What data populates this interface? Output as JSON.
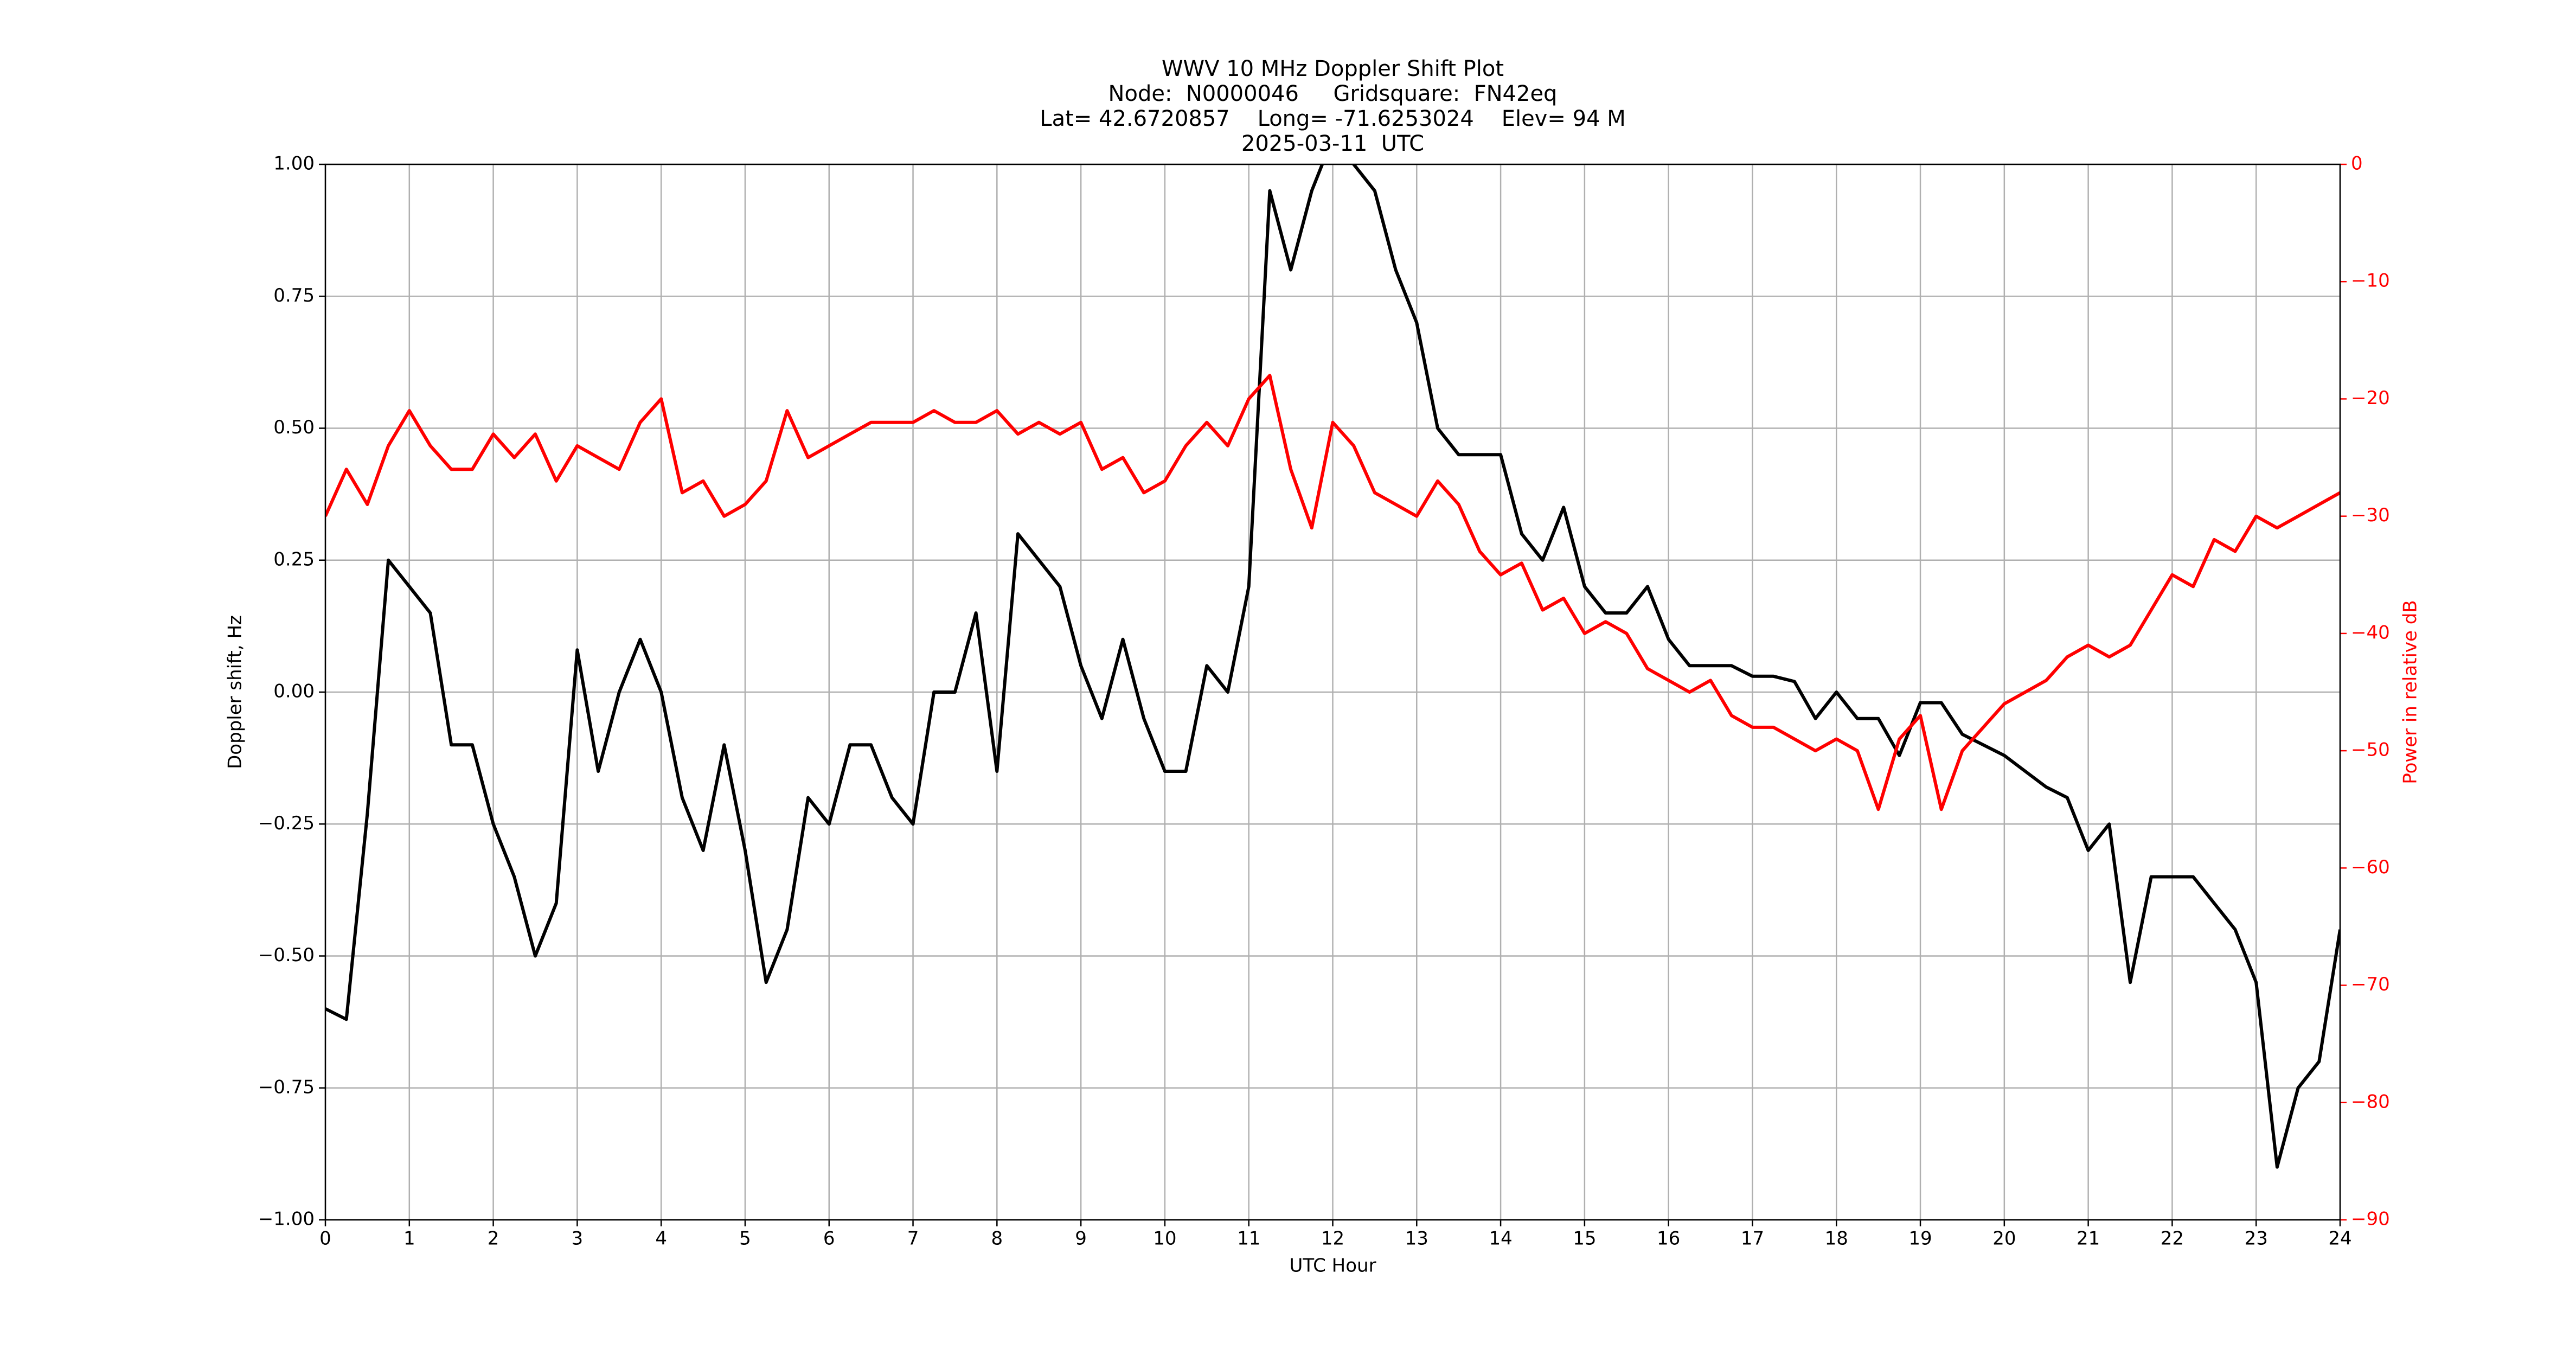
{
  "chart_data": {
    "type": "line",
    "title": [
      "WWV 10 MHz Doppler Shift Plot",
      "Node:  N0000046     Gridsquare:  FN42eq",
      "Lat= 42.6720857    Long= -71.6253024    Elev= 94 M",
      "2025-03-11  UTC"
    ],
    "xlabel": "UTC Hour",
    "ylabel": "Doppler shift, Hz",
    "y2label": "Power in relative dB",
    "x": [
      0,
      0.25,
      0.5,
      0.75,
      1,
      1.25,
      1.5,
      1.75,
      2,
      2.25,
      2.5,
      2.75,
      3,
      3.25,
      3.5,
      3.75,
      4,
      4.25,
      4.5,
      4.75,
      5,
      5.25,
      5.5,
      5.75,
      6,
      6.25,
      6.5,
      6.75,
      7,
      7.25,
      7.5,
      7.75,
      8,
      8.25,
      8.5,
      8.75,
      9,
      9.25,
      9.5,
      9.75,
      10,
      10.25,
      10.5,
      10.75,
      11,
      11.25,
      11.5,
      11.75,
      12,
      12.25,
      12.5,
      12.75,
      13,
      13.25,
      13.5,
      13.75,
      14,
      14.25,
      14.5,
      14.75,
      15,
      15.25,
      15.5,
      15.75,
      16,
      16.25,
      16.5,
      16.75,
      17,
      17.25,
      17.5,
      17.75,
      18,
      18.25,
      18.5,
      18.75,
      19,
      19.25,
      19.5,
      19.75,
      20,
      20.25,
      20.5,
      20.75,
      21,
      21.25,
      21.5,
      21.75,
      22,
      22.25,
      22.5,
      22.75,
      23,
      23.25,
      23.5,
      23.75,
      24
    ],
    "series": [
      {
        "name": "Doppler shift",
        "color": "#000000",
        "axis": "y",
        "values": [
          -0.6,
          -0.62,
          -0.23,
          0.25,
          0.2,
          0.15,
          -0.1,
          -0.1,
          -0.25,
          -0.35,
          -0.5,
          -0.4,
          0.08,
          -0.15,
          0,
          0.1,
          0,
          -0.2,
          -0.3,
          -0.1,
          -0.3,
          -0.55,
          -0.45,
          -0.2,
          -0.25,
          -0.1,
          -0.1,
          -0.2,
          -0.25,
          0,
          0,
          0.15,
          -0.15,
          0.3,
          0.25,
          0.2,
          0.05,
          -0.05,
          0.1,
          -0.05,
          -0.15,
          -0.15,
          0.05,
          0,
          0.2,
          0.95,
          0.8,
          0.95,
          1.05,
          1,
          0.95,
          0.8,
          0.7,
          0.5,
          0.45,
          0.45,
          0.45,
          0.3,
          0.25,
          0.35,
          0.2,
          0.15,
          0.15,
          0.2,
          0.1,
          0.05,
          0.05,
          0.05,
          0.03,
          0.03,
          0.02,
          -0.05,
          0,
          -0.05,
          -0.05,
          -0.12,
          -0.02,
          -0.02,
          -0.08,
          -0.1,
          -0.12,
          -0.15,
          -0.18,
          -0.2,
          -0.3,
          -0.25,
          -0.55,
          -0.35,
          -0.35,
          -0.35,
          -0.4,
          -0.45,
          -0.55,
          -0.9,
          -0.75,
          -0.7,
          -0.45
        ]
      },
      {
        "name": "Power",
        "color": "#ff0000",
        "axis": "y2",
        "values": [
          -30,
          -26,
          -29,
          -24,
          -21,
          -24,
          -26,
          -26,
          -23,
          -25,
          -23,
          -27,
          -24,
          -25,
          -26,
          -22,
          -20,
          -28,
          -27,
          -30,
          -29,
          -27,
          -21,
          -25,
          -24,
          -23,
          -22,
          -22,
          -22,
          -21,
          -22,
          -22,
          -21,
          -23,
          -22,
          -23,
          -22,
          -26,
          -25,
          -28,
          -27,
          -24,
          -22,
          -24,
          -20,
          -18,
          -26,
          -31,
          -22,
          -24,
          -28,
          -29,
          -30,
          -27,
          -29,
          -33,
          -35,
          -34,
          -38,
          -37,
          -40,
          -39,
          -40,
          -43,
          -44,
          -45,
          -44,
          -47,
          -48,
          -48,
          -49,
          -50,
          -49,
          -50,
          -55,
          -49,
          -47,
          -55,
          -50,
          -48,
          -46,
          -45,
          -44,
          -42,
          -41,
          -42,
          -41,
          -38,
          -35,
          -36,
          -32,
          -33,
          -30,
          -31,
          -30,
          -29,
          -28
        ]
      }
    ],
    "xlim": [
      0,
      24
    ],
    "xticks": [
      0,
      1,
      2,
      3,
      4,
      5,
      6,
      7,
      8,
      9,
      10,
      11,
      12,
      13,
      14,
      15,
      16,
      17,
      18,
      19,
      20,
      21,
      22,
      23,
      24
    ],
    "ylim": [
      -1,
      1
    ],
    "yticks": [
      {
        "value": -1,
        "label": "−1.00"
      },
      {
        "value": -0.75,
        "label": "−0.75"
      },
      {
        "value": -0.5,
        "label": "−0.50"
      },
      {
        "value": -0.25,
        "label": "−0.25"
      },
      {
        "value": 0,
        "label": "0.00"
      },
      {
        "value": 0.25,
        "label": "0.25"
      },
      {
        "value": 0.5,
        "label": "0.50"
      },
      {
        "value": 0.75,
        "label": "0.75"
      },
      {
        "value": 1,
        "label": "1.00"
      }
    ],
    "y2lim": [
      -90,
      0
    ],
    "y2ticks": [
      {
        "value": -90,
        "label": "−90"
      },
      {
        "value": -80,
        "label": "−80"
      },
      {
        "value": -70,
        "label": "−70"
      },
      {
        "value": -60,
        "label": "−60"
      },
      {
        "value": -50,
        "label": "−50"
      },
      {
        "value": -40,
        "label": "−40"
      },
      {
        "value": -30,
        "label": "−30"
      },
      {
        "value": -20,
        "label": "−20"
      },
      {
        "value": -10,
        "label": "−10"
      },
      0
    ],
    "y2color": "#ff0000",
    "grid": true
  }
}
